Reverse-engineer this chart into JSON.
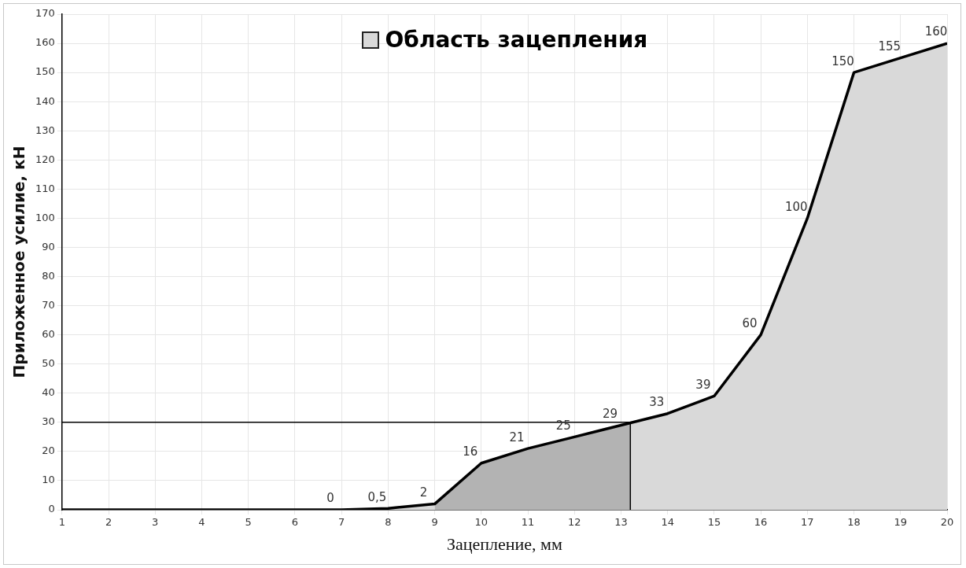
{
  "chart_data": {
    "type": "area",
    "xlabel": "Зацепление, мм",
    "ylabel": "Приложенное усилие, кН",
    "x": [
      1,
      2,
      3,
      4,
      5,
      6,
      7,
      8,
      9,
      10,
      11,
      12,
      13,
      14,
      15,
      16,
      17,
      18,
      19,
      20
    ],
    "xlim": [
      1,
      20
    ],
    "xticks": [
      1,
      2,
      3,
      4,
      5,
      6,
      7,
      8,
      9,
      10,
      11,
      12,
      13,
      14,
      15,
      16,
      17,
      18,
      19,
      20
    ],
    "ylim": [
      0,
      170
    ],
    "yticks": [
      0,
      10,
      20,
      30,
      40,
      50,
      60,
      70,
      80,
      90,
      100,
      110,
      120,
      130,
      140,
      150,
      160,
      170
    ],
    "grid": true,
    "legend": "top",
    "marker": "none",
    "series": [
      {
        "name": "Область зацепления",
        "color": "#d9d9d9",
        "values": [
          0,
          0,
          0,
          0,
          0,
          0,
          0,
          0.5,
          2,
          16,
          21,
          25,
          29,
          33,
          39,
          60,
          100,
          150,
          155,
          160
        ],
        "value_labels": [
          null,
          null,
          null,
          null,
          null,
          null,
          "0",
          "0,5",
          "2",
          "16",
          "21",
          "25",
          "29",
          "33",
          "39",
          "60",
          "100",
          "150",
          "155",
          "160"
        ]
      },
      {
        "type": "area",
        "color": "#b3b3b3",
        "x": [
          9,
          10,
          11,
          12,
          13,
          13.2
        ],
        "values": [
          2,
          16,
          21,
          25,
          29,
          30
        ]
      },
      {
        "type": "line",
        "color": "#000000",
        "x": [
          1,
          13.2,
          13.2
        ],
        "values": [
          30,
          30,
          0
        ]
      }
    ]
  }
}
